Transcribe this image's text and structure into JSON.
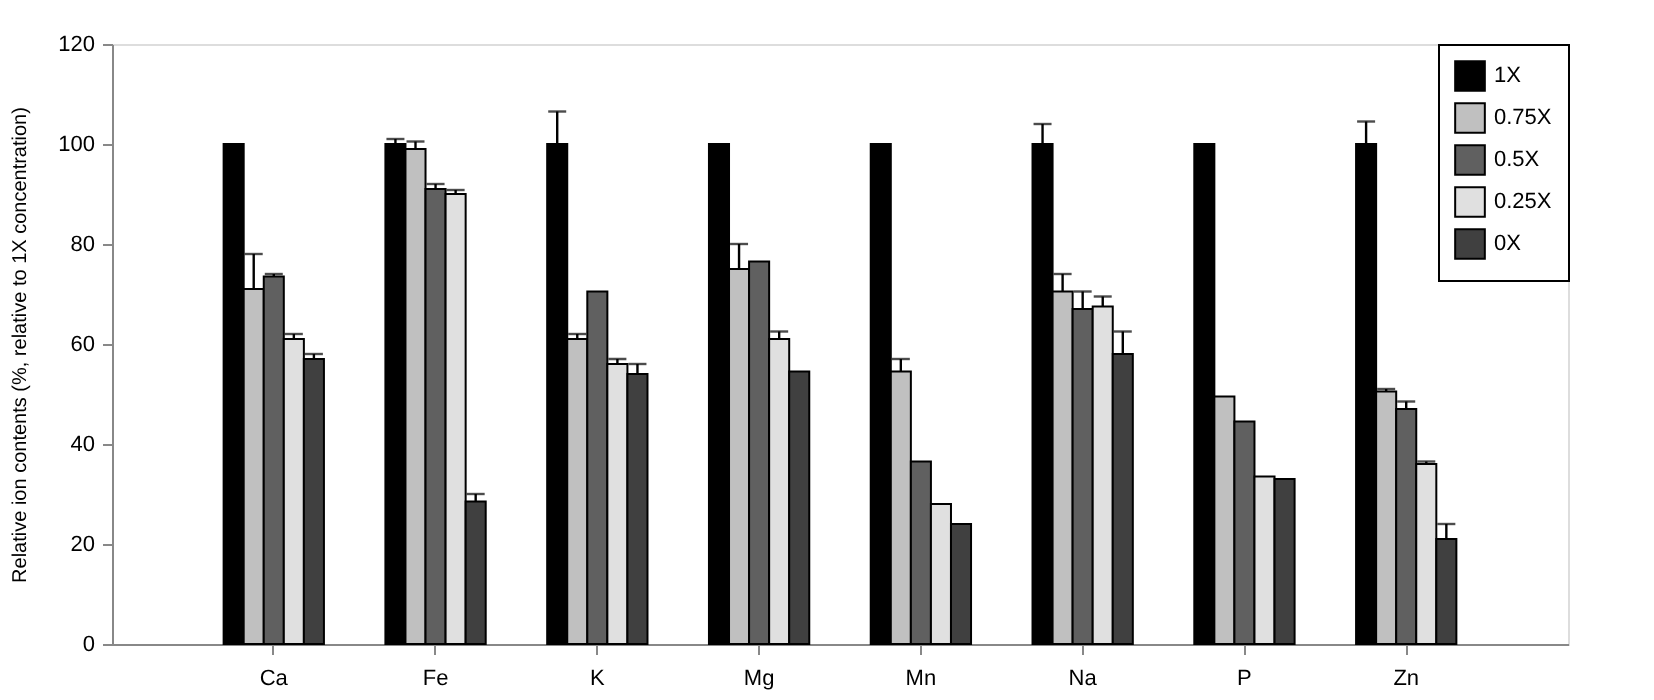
{
  "chart_data": {
    "type": "bar",
    "ylabel": "Relative ion contents (%, relative to 1X concentration)",
    "categories": [
      "Ca",
      "Fe",
      "K",
      "Mg",
      "Mn",
      "Na",
      "P",
      "Zn"
    ],
    "ylim": [
      0,
      120
    ],
    "yticks": [
      0,
      20,
      40,
      60,
      80,
      100,
      120
    ],
    "grid": false,
    "legend": "top right",
    "series": [
      {
        "name": "1X",
        "color": "#000000",
        "values": [
          100,
          100,
          100,
          100,
          100,
          100,
          100,
          100
        ],
        "errors": [
          null,
          [
            100,
            101
          ],
          [
            100,
            106.5
          ],
          null,
          null,
          [
            100,
            104
          ],
          null,
          [
            100,
            104.5
          ]
        ]
      },
      {
        "name": "0.75X",
        "color": "#c0c0c0",
        "values": [
          71,
          99,
          61,
          75,
          54.5,
          70.5,
          49.5,
          50.5
        ],
        "errors": [
          [
            71,
            78
          ],
          [
            99,
            100.5
          ],
          [
            61,
            62
          ],
          [
            75,
            80
          ],
          [
            54.5,
            57
          ],
          [
            70.5,
            74
          ],
          null,
          [
            50.5,
            51
          ]
        ]
      },
      {
        "name": "0.5X",
        "color": "#606060",
        "values": [
          73.5,
          91,
          70.5,
          76.5,
          36.5,
          67,
          44.5,
          47
        ],
        "errors": [
          [
            73.5,
            74
          ],
          [
            91,
            92
          ],
          null,
          null,
          null,
          [
            67,
            70.5
          ],
          null,
          [
            47,
            48.5
          ]
        ]
      },
      {
        "name": "0.25X",
        "color": "#e0e0e0",
        "values": [
          61,
          90,
          56,
          61,
          28,
          67.5,
          33.5,
          36
        ],
        "errors": [
          [
            61,
            62
          ],
          [
            90,
            90.8
          ],
          [
            56,
            57
          ],
          [
            61,
            62.5
          ],
          null,
          [
            67.5,
            69.5
          ],
          null,
          [
            36,
            36.5
          ]
        ]
      },
      {
        "name": "0X",
        "color": "#404040",
        "values": [
          57,
          28.5,
          54,
          54.5,
          24,
          58,
          33,
          21
        ],
        "errors": [
          [
            57,
            58
          ],
          [
            28.5,
            30
          ],
          [
            54,
            56
          ],
          null,
          null,
          [
            58,
            62.5
          ],
          null,
          [
            21,
            24
          ]
        ]
      }
    ]
  }
}
